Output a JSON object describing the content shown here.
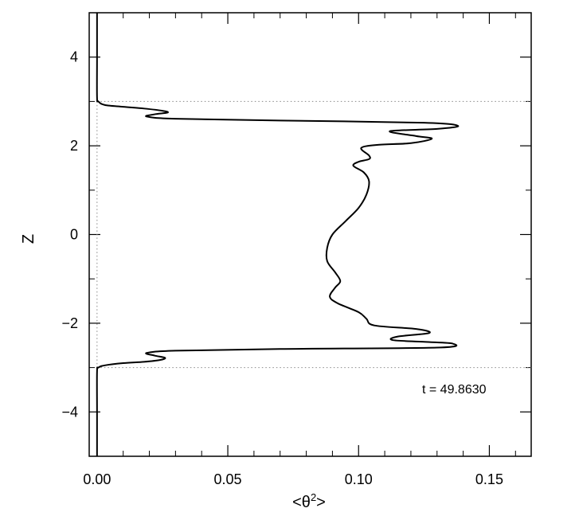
{
  "chart_data": {
    "type": "line",
    "xlabel": "<θ²>",
    "xlabel_base": "<θ",
    "xlabel_sup": "2",
    "xlabel_end": ">",
    "ylabel": "Z",
    "xlim": [
      -0.003,
      0.166
    ],
    "ylim": [
      -5,
      5
    ],
    "x_ticks": [
      "0.00",
      "0.05",
      "0.10",
      "0.15"
    ],
    "x_tick_values": [
      0.0,
      0.05,
      0.1,
      0.15
    ],
    "y_ticks": [
      "−4",
      "−2",
      "0",
      "2",
      "4"
    ],
    "y_tick_values": [
      -4,
      -2,
      0,
      2,
      4
    ],
    "annotation": "t  =  49.8630",
    "reference_lines": {
      "horizontal_dotted_at_z": [
        3.0,
        -3.0
      ],
      "vertical_dotted_at_x": 0.0
    },
    "grid": false,
    "series": [
      {
        "x": [
          0.0,
          0.0,
          0.0,
          0.0005,
          0.003,
          0.01,
          0.018,
          0.025,
          0.027,
          0.022,
          0.019,
          0.03,
          0.07,
          0.125,
          0.138,
          0.13,
          0.112,
          0.122,
          0.128,
          0.12,
          0.107,
          0.101,
          0.104,
          0.104,
          0.1,
          0.098,
          0.102,
          0.104,
          0.103,
          0.1,
          0.095,
          0.09,
          0.088,
          0.088,
          0.091,
          0.093,
          0.091,
          0.089,
          0.092,
          0.1,
          0.103,
          0.106,
          0.122,
          0.127,
          0.115,
          0.113,
          0.125,
          0.136,
          0.13,
          0.07,
          0.03,
          0.019,
          0.022,
          0.026,
          0.024,
          0.018,
          0.01,
          0.003,
          0.0005,
          0.0,
          0.0,
          0.0
        ],
        "y": [
          5.0,
          4.0,
          3.1,
          3.0,
          2.92,
          2.88,
          2.84,
          2.79,
          2.75,
          2.71,
          2.66,
          2.61,
          2.57,
          2.52,
          2.45,
          2.38,
          2.33,
          2.22,
          2.16,
          2.06,
          2.02,
          1.95,
          1.78,
          1.7,
          1.64,
          1.55,
          1.4,
          1.2,
          0.9,
          0.6,
          0.3,
          0.0,
          -0.3,
          -0.6,
          -0.85,
          -1.05,
          -1.2,
          -1.4,
          -1.55,
          -1.75,
          -1.9,
          -2.05,
          -2.13,
          -2.22,
          -2.3,
          -2.38,
          -2.42,
          -2.46,
          -2.55,
          -2.58,
          -2.62,
          -2.67,
          -2.73,
          -2.78,
          -2.83,
          -2.87,
          -2.9,
          -2.95,
          -3.0,
          -3.1,
          -4.0,
          -5.0
        ]
      }
    ]
  }
}
